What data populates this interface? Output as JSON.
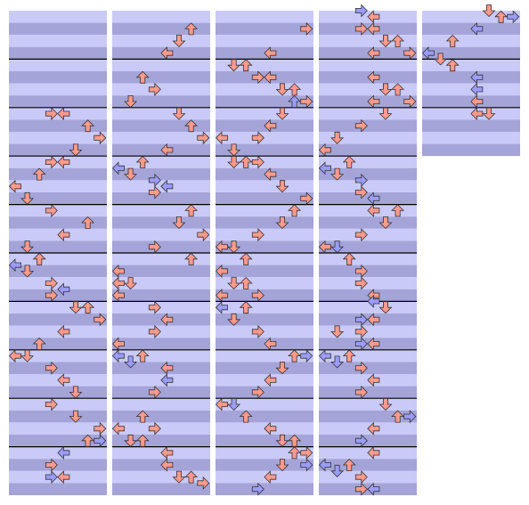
{
  "colors": {
    "r": "#ff9a8c",
    "b": "#9c9cff"
  },
  "panels": [
    {
      "measures": 10,
      "notes": [
        [
          17,
          3,
          "r"
        ],
        [
          17,
          4,
          "r"
        ],
        [
          19,
          6,
          "r"
        ],
        [
          21,
          7,
          "r"
        ],
        [
          23,
          5,
          "r"
        ],
        [
          25,
          3,
          "r"
        ],
        [
          25,
          4,
          "r"
        ],
        [
          27,
          2,
          "r"
        ],
        [
          29,
          0,
          "r"
        ],
        [
          31,
          1,
          "r"
        ],
        [
          33,
          3,
          "r"
        ],
        [
          35,
          6,
          "r"
        ],
        [
          37,
          4,
          "r"
        ],
        [
          39,
          1,
          "r"
        ],
        [
          41,
          2,
          "r"
        ],
        [
          42,
          0,
          "b"
        ],
        [
          43,
          1,
          "r"
        ],
        [
          45,
          3,
          "r"
        ],
        [
          46,
          4,
          "b"
        ],
        [
          47,
          3,
          "r"
        ],
        [
          49,
          5,
          "r"
        ],
        [
          49,
          6,
          "r"
        ],
        [
          51,
          7,
          "r"
        ],
        [
          53,
          4,
          "r"
        ],
        [
          55,
          2,
          "r"
        ],
        [
          57,
          0,
          "r"
        ],
        [
          57,
          1,
          "r"
        ],
        [
          59,
          3,
          "r"
        ],
        [
          61,
          4,
          "r"
        ],
        [
          63,
          5,
          "r"
        ],
        [
          65,
          3,
          "r"
        ],
        [
          67,
          5,
          "r"
        ],
        [
          69,
          7,
          "r"
        ],
        [
          71,
          6,
          "r"
        ],
        [
          71,
          7,
          "b"
        ],
        [
          73,
          4,
          "b"
        ],
        [
          75,
          3,
          "r"
        ],
        [
          77,
          3,
          "b"
        ],
        [
          77,
          4,
          "r"
        ]
      ]
    },
    {
      "measures": 10,
      "notes": [
        [
          3,
          6,
          "r"
        ],
        [
          5,
          5,
          "r"
        ],
        [
          7,
          4,
          "r"
        ],
        [
          11,
          2,
          "r"
        ],
        [
          13,
          3,
          "r"
        ],
        [
          15,
          1,
          "r"
        ],
        [
          17,
          5,
          "r"
        ],
        [
          19,
          6,
          "r"
        ],
        [
          21,
          7,
          "r"
        ],
        [
          23,
          4,
          "r"
        ],
        [
          25,
          2,
          "r"
        ],
        [
          26,
          0,
          "b"
        ],
        [
          27,
          1,
          "r"
        ],
        [
          28,
          3,
          "b"
        ],
        [
          29,
          4,
          "b"
        ],
        [
          30,
          3,
          "r"
        ],
        [
          33,
          6,
          "r"
        ],
        [
          35,
          5,
          "r"
        ],
        [
          37,
          7,
          "r"
        ],
        [
          39,
          3,
          "r"
        ],
        [
          41,
          6,
          "r"
        ],
        [
          43,
          0,
          "r"
        ],
        [
          45,
          0,
          "r"
        ],
        [
          45,
          1,
          "r"
        ],
        [
          47,
          0,
          "r"
        ],
        [
          49,
          3,
          "r"
        ],
        [
          51,
          4,
          "r"
        ],
        [
          53,
          3,
          "r"
        ],
        [
          55,
          0,
          "r"
        ],
        [
          57,
          0,
          "b"
        ],
        [
          57,
          2,
          "r"
        ],
        [
          58,
          1,
          "b"
        ],
        [
          59,
          4,
          "r"
        ],
        [
          61,
          4,
          "b"
        ],
        [
          63,
          3,
          "r"
        ],
        [
          67,
          2,
          "r"
        ],
        [
          69,
          0,
          "r"
        ],
        [
          69,
          3,
          "r"
        ],
        [
          71,
          1,
          "r"
        ],
        [
          71,
          2,
          "r"
        ],
        [
          73,
          4,
          "r"
        ],
        [
          75,
          4,
          "r"
        ],
        [
          77,
          5,
          "r"
        ],
        [
          77,
          6,
          "r"
        ],
        [
          78,
          7,
          "r"
        ]
      ]
    },
    {
      "measures": 10,
      "notes": [
        [
          3,
          7,
          "r"
        ],
        [
          7,
          4,
          "r"
        ],
        [
          9,
          1,
          "r"
        ],
        [
          9,
          2,
          "r"
        ],
        [
          11,
          3,
          "r"
        ],
        [
          11,
          4,
          "r"
        ],
        [
          13,
          5,
          "r"
        ],
        [
          13,
          6,
          "r"
        ],
        [
          15,
          6,
          "b"
        ],
        [
          15,
          7,
          "r"
        ],
        [
          17,
          5,
          "r"
        ],
        [
          19,
          4,
          "r"
        ],
        [
          21,
          0,
          "r"
        ],
        [
          21,
          3,
          "r"
        ],
        [
          23,
          1,
          "r"
        ],
        [
          25,
          1,
          "r"
        ],
        [
          25,
          2,
          "r"
        ],
        [
          25,
          3,
          "r"
        ],
        [
          27,
          4,
          "r"
        ],
        [
          29,
          5,
          "r"
        ],
        [
          31,
          7,
          "r"
        ],
        [
          33,
          6,
          "r"
        ],
        [
          35,
          5,
          "r"
        ],
        [
          37,
          3,
          "r"
        ],
        [
          39,
          0,
          "r"
        ],
        [
          39,
          1,
          "r"
        ],
        [
          41,
          2,
          "r"
        ],
        [
          43,
          0,
          "r"
        ],
        [
          45,
          1,
          "r"
        ],
        [
          45,
          2,
          "r"
        ],
        [
          47,
          0,
          "r"
        ],
        [
          47,
          3,
          "r"
        ],
        [
          49,
          0,
          "b"
        ],
        [
          49,
          2,
          "r"
        ],
        [
          51,
          1,
          "r"
        ],
        [
          53,
          3,
          "r"
        ],
        [
          55,
          4,
          "r"
        ],
        [
          57,
          6,
          "r"
        ],
        [
          57,
          7,
          "b"
        ],
        [
          59,
          5,
          "r"
        ],
        [
          61,
          4,
          "r"
        ],
        [
          63,
          3,
          "r"
        ],
        [
          65,
          0,
          "r"
        ],
        [
          65,
          1,
          "b"
        ],
        [
          67,
          2,
          "r"
        ],
        [
          69,
          4,
          "r"
        ],
        [
          71,
          5,
          "r"
        ],
        [
          71,
          6,
          "r"
        ],
        [
          73,
          6,
          "r"
        ],
        [
          73,
          7,
          "r"
        ],
        [
          75,
          7,
          "b"
        ],
        [
          75,
          5,
          "r"
        ],
        [
          77,
          4,
          "r"
        ],
        [
          79,
          3,
          "b"
        ]
      ]
    },
    {
      "measures": 10,
      "notes": [
        [
          0,
          3,
          "b"
        ],
        [
          1,
          4,
          "r"
        ],
        [
          3,
          3,
          "r"
        ],
        [
          3,
          4,
          "r"
        ],
        [
          5,
          5,
          "r"
        ],
        [
          5,
          6,
          "r"
        ],
        [
          7,
          4,
          "r"
        ],
        [
          7,
          7,
          "r"
        ],
        [
          11,
          4,
          "r"
        ],
        [
          13,
          5,
          "r"
        ],
        [
          13,
          6,
          "r"
        ],
        [
          15,
          4,
          "r"
        ],
        [
          15,
          7,
          "r"
        ],
        [
          17,
          5,
          "r"
        ],
        [
          19,
          3,
          "r"
        ],
        [
          21,
          1,
          "r"
        ],
        [
          23,
          0,
          "r"
        ],
        [
          25,
          2,
          "r"
        ],
        [
          26,
          0,
          "b"
        ],
        [
          27,
          1,
          "r"
        ],
        [
          28,
          3,
          "b"
        ],
        [
          30,
          3,
          "r"
        ],
        [
          31,
          4,
          "b"
        ],
        [
          33,
          4,
          "r"
        ],
        [
          33,
          6,
          "r"
        ],
        [
          35,
          5,
          "r"
        ],
        [
          37,
          3,
          "r"
        ],
        [
          39,
          0,
          "r"
        ],
        [
          39,
          1,
          "b"
        ],
        [
          41,
          2,
          "r"
        ],
        [
          43,
          3,
          "r"
        ],
        [
          45,
          3,
          "r"
        ],
        [
          47,
          4,
          "r"
        ],
        [
          48,
          4,
          "b"
        ],
        [
          49,
          5,
          "r"
        ],
        [
          51,
          3,
          "b"
        ],
        [
          51,
          4,
          "r"
        ],
        [
          53,
          1,
          "r"
        ],
        [
          53,
          3,
          "r"
        ],
        [
          55,
          3,
          "b"
        ],
        [
          55,
          4,
          "r"
        ],
        [
          57,
          0,
          "b"
        ],
        [
          57,
          2,
          "r"
        ],
        [
          58,
          1,
          "b"
        ],
        [
          59,
          3,
          "r"
        ],
        [
          61,
          4,
          "r"
        ],
        [
          63,
          3,
          "r"
        ],
        [
          65,
          5,
          "r"
        ],
        [
          67,
          6,
          "r"
        ],
        [
          67,
          7,
          "b"
        ],
        [
          69,
          4,
          "r"
        ],
        [
          71,
          3,
          "b"
        ],
        [
          73,
          4,
          "r"
        ],
        [
          75,
          0,
          "b"
        ],
        [
          75,
          2,
          "r"
        ],
        [
          76,
          1,
          "b"
        ],
        [
          77,
          3,
          "r"
        ],
        [
          79,
          3,
          "r"
        ],
        [
          79,
          4,
          "b"
        ]
      ]
    },
    {
      "measures": 3,
      "notes": [
        [
          0,
          5,
          "r"
        ],
        [
          1,
          6,
          "r"
        ],
        [
          1,
          7,
          "b"
        ],
        [
          3,
          4,
          "b"
        ],
        [
          5,
          2,
          "r"
        ],
        [
          7,
          0,
          "b"
        ],
        [
          8,
          1,
          "r"
        ],
        [
          9,
          2,
          "r"
        ],
        [
          11,
          4,
          "b"
        ],
        [
          13,
          4,
          "b"
        ],
        [
          15,
          4,
          "r"
        ],
        [
          17,
          4,
          "r"
        ],
        [
          17,
          5,
          "r"
        ]
      ]
    }
  ]
}
